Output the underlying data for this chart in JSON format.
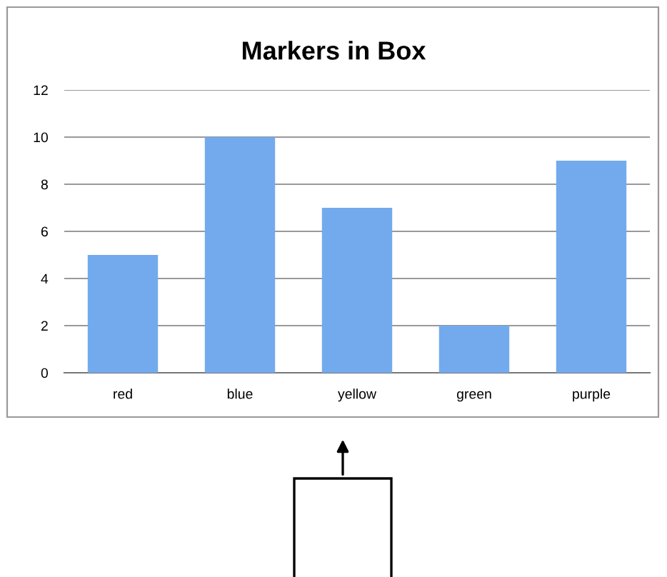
{
  "chart_data": {
    "type": "bar",
    "title": "Markers in Box",
    "categories": [
      "red",
      "blue",
      "yellow",
      "green",
      "purple"
    ],
    "values": [
      5,
      10,
      7,
      2,
      9
    ],
    "color": "#73aaee",
    "ylim": [
      0,
      12
    ],
    "yticks": [
      0,
      2,
      4,
      6,
      8,
      10,
      12
    ],
    "grid": "y",
    "legend": false
  }
}
